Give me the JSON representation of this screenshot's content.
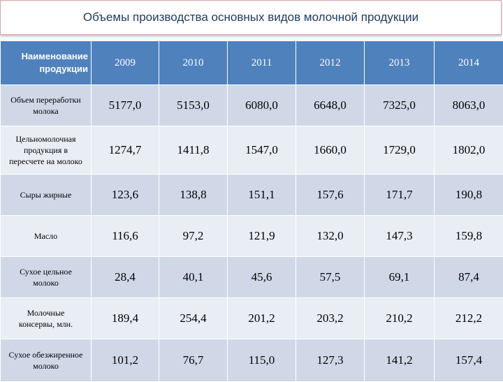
{
  "title": "Объемы производства основных видов молочной продукции",
  "header": {
    "name_column": "Наименование\nпродукции",
    "years": [
      "2009",
      "2010",
      "2011",
      "2012",
      "2013",
      "2014"
    ]
  },
  "rows": [
    {
      "label": "Объем переработки\nмолока",
      "values": [
        "5177,0",
        "5153,0",
        "6080,0",
        "6648,0",
        "7325,0",
        "8063,0"
      ]
    },
    {
      "label": "Цельномолочная\nпродукция в\nпересчете на молоко",
      "values": [
        "1274,7",
        "1411,8",
        "1547,0",
        "1660,0",
        "1729,0",
        "1802,0"
      ]
    },
    {
      "label": "Сыры жирные",
      "values": [
        "123,6",
        "138,8",
        "151,1",
        "157,6",
        "171,7",
        "190,8"
      ]
    },
    {
      "label": "Масло",
      "values": [
        "116,6",
        "97,2",
        "121,9",
        "132,0",
        "147,3",
        "159,8"
      ]
    },
    {
      "label": "Сухое цельное\nмолоко",
      "values": [
        "28,4",
        "40,1",
        "45,6",
        "57,5",
        "69,1",
        "87,4"
      ]
    },
    {
      "label": "Молочные\nконсервы, млн.",
      "values": [
        "189,4",
        "254,4",
        "201,2",
        "203,2",
        "210,2",
        "212,2"
      ]
    },
    {
      "label": "Сухое обезжиренное\nмолоко",
      "values": [
        "101,2",
        "76,7",
        "115,0",
        "127,3",
        "141,2",
        "157,4"
      ]
    }
  ],
  "colors": {
    "header_bg": "#4f81bd",
    "row_odd_bg": "#d0d8e8",
    "row_even_bg": "#e9edf4",
    "title_text": "#1f3b63"
  }
}
